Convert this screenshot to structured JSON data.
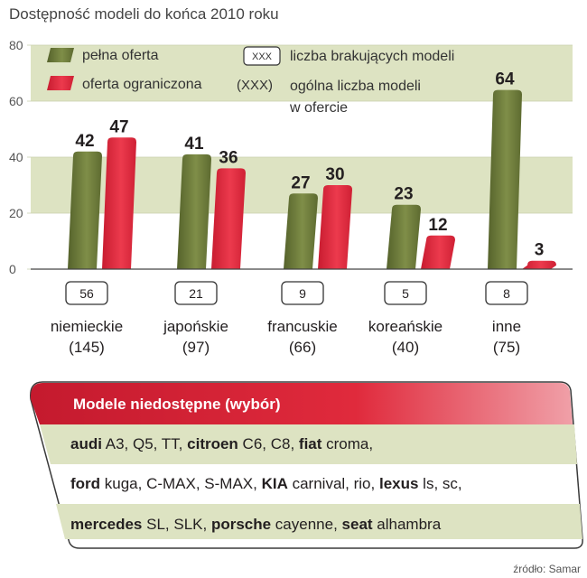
{
  "chart_data": {
    "type": "bar",
    "title": "Dostępność modeli do końca 2010 roku",
    "categories": [
      "niemieckie",
      "japońskie",
      "francuskie",
      "koreańskie",
      "inne"
    ],
    "category_totals": [
      "(145)",
      "(97)",
      "(66)",
      "(40)",
      "(75)"
    ],
    "missing_counts": [
      "56",
      "21",
      "9",
      "5",
      "8"
    ],
    "series": [
      {
        "name": "pełna oferta",
        "values": [
          42,
          41,
          27,
          23,
          64
        ]
      },
      {
        "name": "oferta ograniczona",
        "values": [
          47,
          36,
          30,
          12,
          3
        ]
      }
    ],
    "ylim": [
      0,
      80
    ],
    "yticks": [
      0,
      20,
      40,
      60,
      80
    ],
    "xlabel": "",
    "ylabel": "",
    "legend": {
      "full": "pełna oferta",
      "limited": "oferta ograniczona",
      "box_marker": "XXX",
      "box_text": "liczba brakujących modeli",
      "paren_marker": "(XXX)",
      "paren_text_1": "ogólna liczba modeli",
      "paren_text_2": "w ofercie"
    },
    "source": "źródło: Samar"
  },
  "colors": {
    "green": "#6b7a3a",
    "red": "#e0263b",
    "band": "#dde3c2",
    "panel_header": "#d21f35"
  },
  "panel": {
    "title": "Modele niedostępne (wybór)",
    "rows": [
      [
        {
          "brand": "audi",
          "models": " A3, Q5, TT, "
        },
        {
          "brand": "citroen",
          "models": " C6, C8, "
        },
        {
          "brand": "fiat",
          "models": " croma,"
        }
      ],
      [
        {
          "brand": "ford",
          "models": " kuga, C-MAX, S-MAX, "
        },
        {
          "brand": "KIA",
          "models": " carnival, rio, "
        },
        {
          "brand": "lexus",
          "models": " ls, sc,"
        }
      ],
      [
        {
          "brand": "mercedes",
          "models": " SL, SLK, "
        },
        {
          "brand": "porsche",
          "models": " cayenne, "
        },
        {
          "brand": "seat",
          "models": " alhambra"
        }
      ]
    ]
  }
}
